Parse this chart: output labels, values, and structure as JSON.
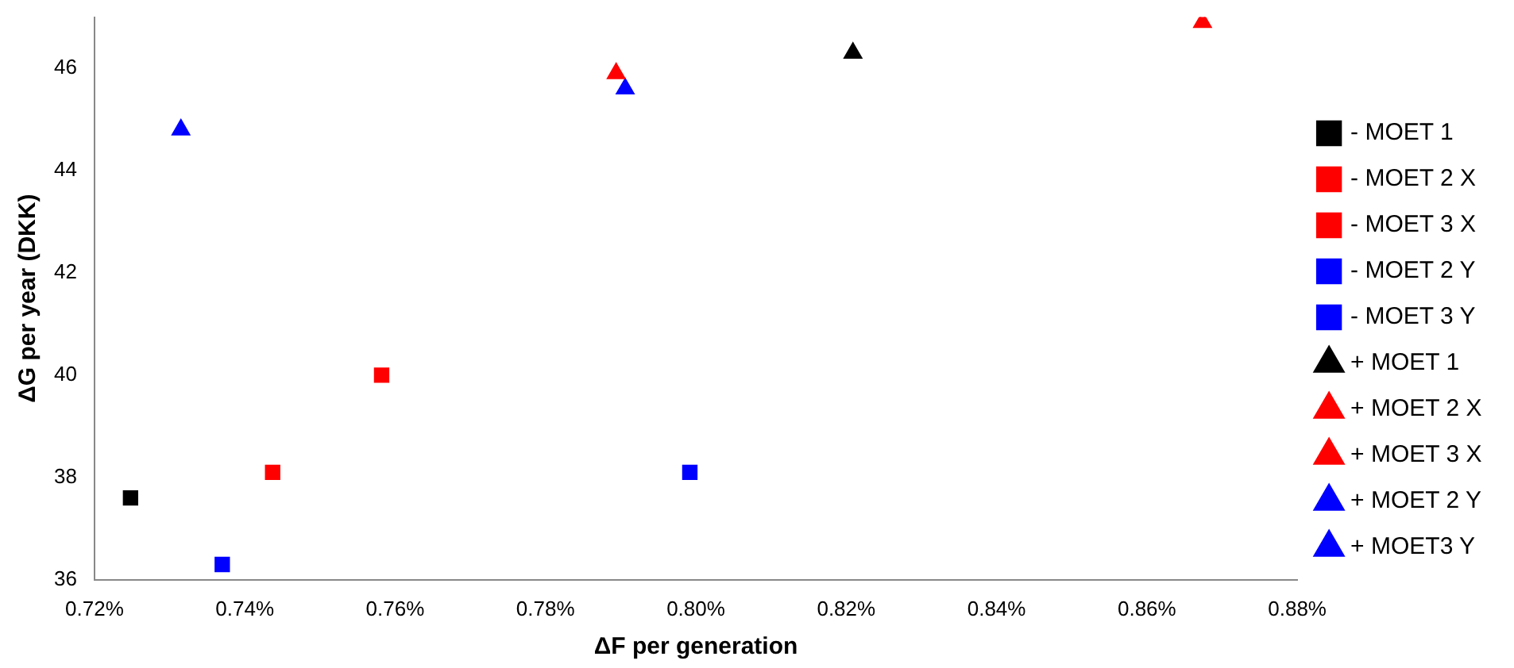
{
  "chart_data": {
    "type": "scatter",
    "xlabel": "ΔF per generation",
    "ylabel": "ΔG per year (DKK)",
    "xlim": [
      0.72,
      0.88
    ],
    "xticks": [
      {
        "value": 0.72,
        "label": "0.72%"
      },
      {
        "value": 0.74,
        "label": "0.74%"
      },
      {
        "value": 0.76,
        "label": "0.76%"
      },
      {
        "value": 0.78,
        "label": "0.78%"
      },
      {
        "value": 0.8,
        "label": "0.80%"
      },
      {
        "value": 0.82,
        "label": "0.82%"
      },
      {
        "value": 0.84,
        "label": "0.84%"
      },
      {
        "value": 0.86,
        "label": "0.86%"
      },
      {
        "value": 0.88,
        "label": "0.88%"
      }
    ],
    "ylim": [
      36,
      47
    ],
    "yticks": [
      36,
      38,
      40,
      42,
      44,
      46
    ],
    "grid": false,
    "legend": "right",
    "series": [
      {
        "name": "- MOET 1",
        "color": "#000000",
        "marker": "square",
        "x": [
          0.7248
        ],
        "values": [
          37.6
        ]
      },
      {
        "name": "- MOET 2 X",
        "color": "#ff0000",
        "marker": "square",
        "x": [
          0.7437
        ],
        "values": [
          38.1
        ]
      },
      {
        "name": "- MOET 3 X",
        "color": "#ff0000",
        "marker": "square",
        "x": [
          0.7582
        ],
        "values": [
          40.0
        ]
      },
      {
        "name": "- MOET 2 Y",
        "color": "#0000ff",
        "marker": "square",
        "x": [
          0.737
        ],
        "values": [
          36.3
        ]
      },
      {
        "name": "- MOET 3 Y",
        "color": "#0000ff",
        "marker": "square",
        "x": [
          0.7992
        ],
        "values": [
          38.1
        ]
      },
      {
        "name": "+ MOET 1",
        "color": "#000000",
        "marker": "triangle",
        "x": [
          0.8209
        ],
        "values": [
          46.3
        ]
      },
      {
        "name": "+ MOET 2 X",
        "color": "#ff0000",
        "marker": "triangle",
        "x": [
          0.7894
        ],
        "values": [
          45.9
        ]
      },
      {
        "name": "+ MOET 3 X",
        "color": "#ff0000",
        "marker": "triangle",
        "x": [
          0.8674
        ],
        "values": [
          46.9
        ]
      },
      {
        "name": "+ MOET 2 Y",
        "color": "#0000ff",
        "marker": "triangle",
        "x": [
          0.7315
        ],
        "values": [
          44.8
        ]
      },
      {
        "name": "+ MOET3 Y",
        "color": "#0000ff",
        "marker": "triangle",
        "x": [
          0.7906
        ],
        "values": [
          45.6
        ]
      }
    ]
  }
}
